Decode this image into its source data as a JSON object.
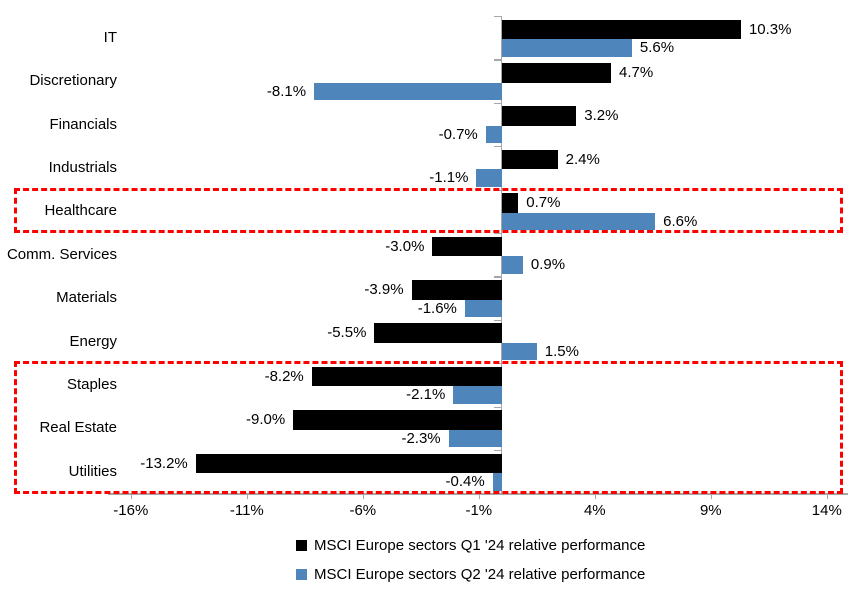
{
  "chart_data": {
    "type": "bar",
    "orientation": "horizontal",
    "title": "",
    "categories": [
      "IT",
      "Discretionary",
      "Financials",
      "Industrials",
      "Healthcare",
      "Comm. Services",
      "Materials",
      "Energy",
      "Staples",
      "Real Estate",
      "Utilities"
    ],
    "series": [
      {
        "name": "MSCI Europe sectors Q1 '24 relative performance",
        "color": "#000000",
        "values": [
          10.3,
          4.7,
          3.2,
          2.4,
          0.7,
          -3.0,
          -3.9,
          -5.5,
          -8.2,
          -9.0,
          -13.2
        ],
        "labels": [
          "10.3%",
          "4.7%",
          "3.2%",
          "2.4%",
          "0.7%",
          "-3.0%",
          "-3.9%",
          "-5.5%",
          "-8.2%",
          "-9.0%",
          "-13.2%"
        ]
      },
      {
        "name": "MSCI Europe sectors Q2 '24 relative performance",
        "color": "#4E86BC",
        "values": [
          5.6,
          -8.1,
          -0.7,
          -1.1,
          6.6,
          0.9,
          -1.6,
          1.5,
          -2.1,
          -2.3,
          -0.4
        ],
        "labels": [
          "5.6%",
          "-8.1%",
          "-0.7%",
          "-1.1%",
          "6.6%",
          "0.9%",
          "-1.6%",
          "1.5%",
          "-2.1%",
          "-2.3%",
          "-0.4%"
        ]
      }
    ],
    "x_axis": {
      "tick_labels": [
        "-16%",
        "-11%",
        "-6%",
        "-1%",
        "4%",
        "9%",
        "14%"
      ],
      "tick_values": [
        -16,
        -11,
        -6,
        -1,
        4,
        9,
        14
      ],
      "range_min": -17,
      "range_max": 14.9
    },
    "grid": false,
    "legend_position": "bottom",
    "highlights": [
      {
        "name": "healthcare",
        "categories": [
          "Healthcare"
        ]
      },
      {
        "name": "staples-realestate-utilities",
        "categories": [
          "Staples",
          "Real Estate",
          "Utilities"
        ]
      }
    ],
    "highlight_color": "#FF0000",
    "axis_color": "#A6A6A6",
    "text_color": "#000000"
  }
}
